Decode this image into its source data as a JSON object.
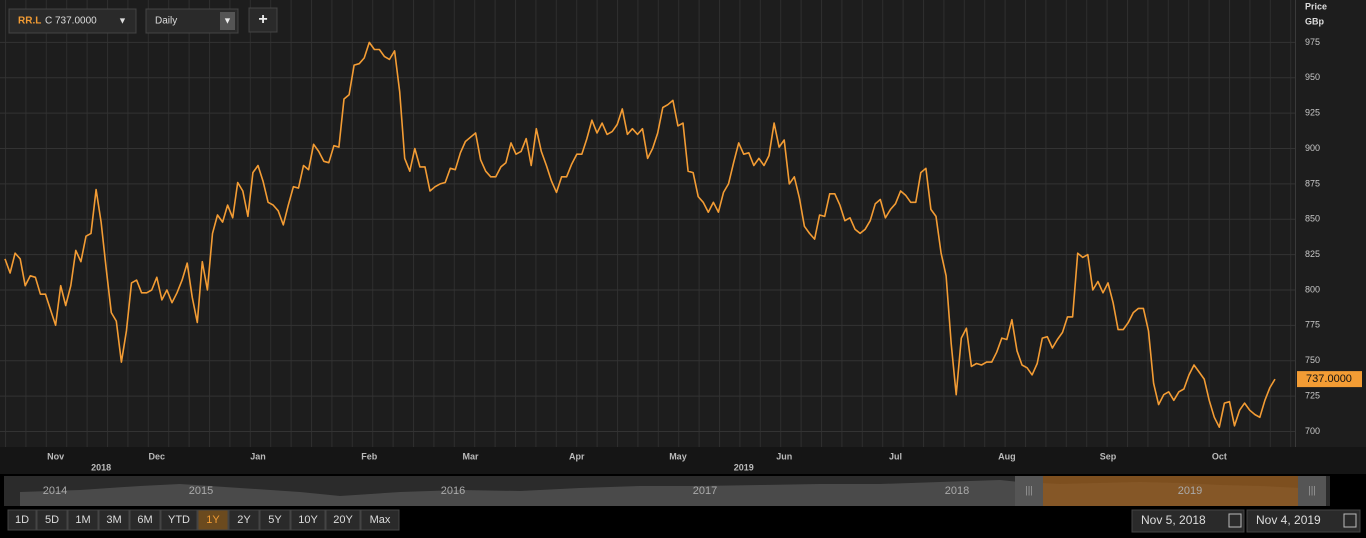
{
  "toolbar": {
    "symbol": "RR.L",
    "quote": "C 737.0000",
    "interval": "Daily",
    "add": "+"
  },
  "chart_data": {
    "type": "line",
    "axis_title": "Price",
    "axis_unit": "GBp",
    "series": [
      {
        "name": "RR.L",
        "color": "#f39c34",
        "values": [
          822,
          812,
          826,
          822,
          803,
          810,
          809,
          797,
          797,
          786,
          775,
          803,
          789,
          803,
          828,
          820,
          838,
          840,
          871,
          848,
          815,
          784,
          778,
          749,
          771,
          805,
          807,
          798,
          798,
          800,
          809,
          793,
          800,
          791,
          798,
          807,
          819,
          795,
          777,
          820,
          800,
          840,
          853,
          848,
          860,
          851,
          876,
          870,
          852,
          883,
          888,
          877,
          862,
          860,
          856,
          846,
          860,
          873,
          872,
          888,
          885,
          903,
          898,
          891,
          890,
          902,
          901,
          935,
          938,
          959,
          960,
          964,
          975,
          970,
          970,
          965,
          963,
          969,
          940,
          893,
          884,
          900,
          887,
          887,
          870,
          873,
          875,
          876,
          886,
          885,
          897,
          905,
          908,
          911,
          892,
          884,
          880,
          880,
          887,
          890,
          904,
          896,
          898,
          907,
          888,
          914,
          898,
          888,
          877,
          869,
          880,
          880,
          889,
          896,
          896,
          907,
          920,
          911,
          918,
          910,
          912,
          917,
          928,
          910,
          914,
          910,
          914,
          893,
          900,
          911,
          929,
          931,
          934,
          916,
          918,
          884,
          883,
          866,
          862,
          855,
          862,
          855,
          869,
          875,
          890,
          904,
          896,
          897,
          888,
          893,
          888,
          895,
          918,
          901,
          906,
          875,
          880,
          865,
          845,
          840,
          836,
          853,
          852,
          868,
          868,
          860,
          849,
          851,
          843,
          840,
          843,
          849,
          861,
          864,
          851,
          857,
          861,
          870,
          867,
          862,
          862,
          883,
          886,
          857,
          852,
          826,
          810,
          762,
          726,
          766,
          773,
          746,
          748,
          747,
          749,
          749,
          756,
          766,
          765,
          779,
          757,
          747,
          745,
          740,
          748,
          766,
          767,
          759,
          765,
          770,
          781,
          781,
          826,
          823,
          825,
          800,
          806,
          798,
          805,
          791,
          772,
          772,
          777,
          784,
          787,
          787,
          771,
          734,
          719,
          726,
          728,
          722,
          728,
          730,
          740,
          747,
          742,
          737,
          722,
          710,
          703,
          720,
          721,
          704,
          715,
          720,
          715,
          712,
          710,
          722,
          731,
          737
        ]
      }
    ],
    "last_value_label": "737.0000",
    "ylim": [
      689,
      1005
    ],
    "yticks": [
      700,
      725,
      750,
      775,
      800,
      825,
      850,
      875,
      900,
      925,
      950,
      975
    ],
    "grid": true,
    "xticks": [
      {
        "value": 10,
        "label": "Nov"
      },
      {
        "value": 30,
        "label": "Dec"
      },
      {
        "value": 50,
        "label": "Jan"
      },
      {
        "value": 72,
        "label": "Feb"
      },
      {
        "value": 92,
        "label": "Mar"
      },
      {
        "value": 113,
        "label": "Apr"
      },
      {
        "value": 133,
        "label": "May"
      },
      {
        "value": 154,
        "label": "Jun"
      },
      {
        "value": 176,
        "label": "Jul"
      },
      {
        "value": 198,
        "label": "Aug"
      },
      {
        "value": 218,
        "label": "Sep"
      },
      {
        "value": 240,
        "label": "Oct"
      }
    ],
    "year_ticks": [
      {
        "value": 19,
        "label": "2018"
      },
      {
        "value": 146,
        "label": "2019"
      }
    ]
  },
  "navigator": {
    "years": [
      "2014",
      "2015",
      "2016",
      "2017",
      "2018",
      "2019"
    ]
  },
  "range_buttons": [
    "1D",
    "5D",
    "1M",
    "3M",
    "6M",
    "YTD",
    "1Y",
    "2Y",
    "5Y",
    "10Y",
    "20Y",
    "Max"
  ],
  "range_active": "1Y",
  "date_from": "Nov 5, 2018",
  "date_to": "Nov 4, 2019"
}
